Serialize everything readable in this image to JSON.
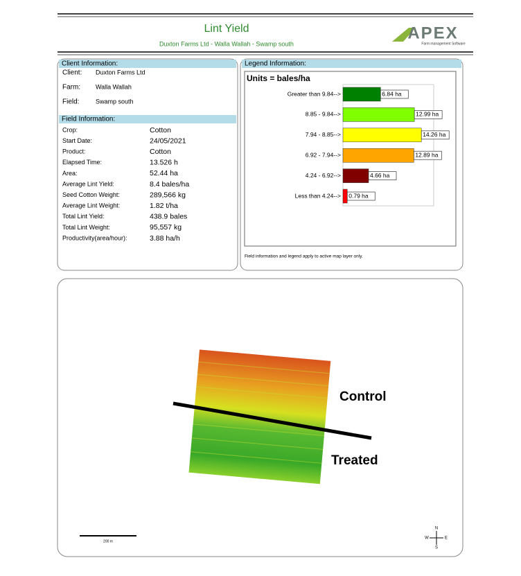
{
  "header": {
    "title": "Lint Yield",
    "subtitle": "Duxton Farms Ltd - Walla Wallah - Swamp south",
    "logo": "APEX",
    "logo_tagline": "Farm management Software"
  },
  "client_info": {
    "heading": "Client Information:",
    "rows": [
      [
        "Client:",
        "Duxton Farms Ltd"
      ],
      [
        "Farm:",
        "Walla Wallah"
      ],
      [
        "Field:",
        "Swamp south"
      ]
    ]
  },
  "field_info": {
    "heading": "Field Information:",
    "rows": [
      [
        "Crop:",
        "Cotton"
      ],
      [
        "Start Date:",
        "24/05/2021"
      ],
      [
        "Product:",
        "Cotton"
      ],
      [
        "Elapsed Time:",
        "13.526 h"
      ],
      [
        "Area:",
        "52.44 ha"
      ],
      [
        "Average Lint Yield:",
        "8.4 bales/ha"
      ],
      [
        "Seed Cotton Weight:",
        "289,566 kg"
      ],
      [
        "Average Lint Weight:",
        "1.82 t/ha"
      ],
      [
        "Total Lint Yield:",
        "438.9 bales"
      ],
      [
        "Total Lint Weight:",
        "95,557 kg"
      ],
      [
        "Productivity(area/hour):",
        "3.88 ha/h"
      ]
    ]
  },
  "legend_info": {
    "heading": "Legend Information:",
    "note": "Field information and legend apply to active map layer only."
  },
  "chart_data": {
    "type": "bar",
    "orientation": "horizontal",
    "title": "Units = bales/ha",
    "categories": [
      "Greater than 9.84-->",
      "8.85 - 9.84-->",
      "7.94 - 8.85-->",
      "6.92 - 7.94-->",
      "4.24 - 6.92-->",
      "Less than 4.24-->"
    ],
    "values": [
      6.84,
      12.99,
      14.26,
      12.89,
      4.66,
      0.79
    ],
    "value_labels": [
      "6.84 ha",
      "12.99 ha",
      "14.26 ha",
      "12.89 ha",
      "4.66 ha",
      "0.79 ha"
    ],
    "colors": [
      "#008000",
      "#80ff00",
      "#ffff00",
      "#ffa500",
      "#800000",
      "#ff0000"
    ],
    "xlim": [
      0,
      16.5
    ]
  },
  "map": {
    "labels": [
      "Control",
      "Treated"
    ],
    "scale": "200 m",
    "compass": [
      "N",
      "S",
      "W",
      "E"
    ]
  }
}
